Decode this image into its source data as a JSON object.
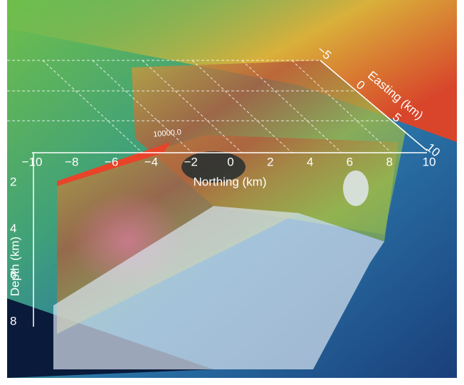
{
  "northing_axis": {
    "label": "Northing (km)",
    "ticks": [
      "−10",
      "−8",
      "−6",
      "−4",
      "−2",
      "0",
      "2",
      "4",
      "6",
      "8",
      "10"
    ]
  },
  "easting_axis": {
    "label": "Easting (km)",
    "ticks": [
      "−5",
      "0",
      "5",
      "10"
    ]
  },
  "depth_axis": {
    "label": "Depth (km)",
    "ticks": [
      "2",
      "4",
      "6",
      "8"
    ]
  },
  "contour_label": "10000.0"
}
